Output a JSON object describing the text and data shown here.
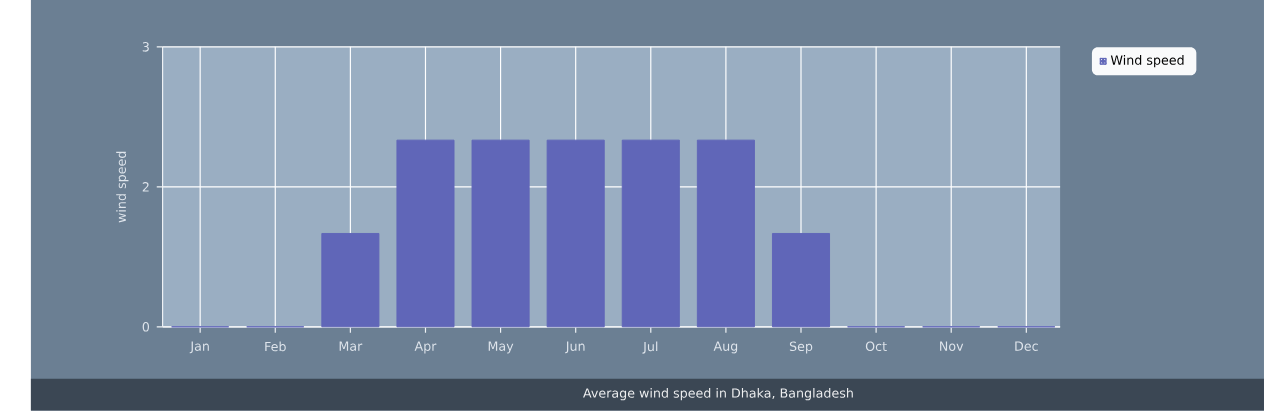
{
  "chart_data": {
    "type": "bar",
    "categories": [
      "Jan",
      "Feb",
      "Mar",
      "Apr",
      "May",
      "Jun",
      "Jul",
      "Aug",
      "Sep",
      "Oct",
      "Nov",
      "Dec"
    ],
    "series": [
      {
        "name": "Wind speed",
        "color": "#6066b8",
        "values": [
          0,
          0,
          1,
          2,
          2,
          2,
          2,
          2,
          1,
          0,
          0,
          0
        ]
      }
    ],
    "ylabel": "wind speed",
    "ylim": [
      0,
      3
    ],
    "yticks": [
      0,
      {
        "value": 1.5,
        "label": "2"
      },
      3
    ],
    "grid": true,
    "legend": "top right",
    "annotations": [
      "Average wind speed in Dhaka, Bangladesh"
    ]
  }
}
